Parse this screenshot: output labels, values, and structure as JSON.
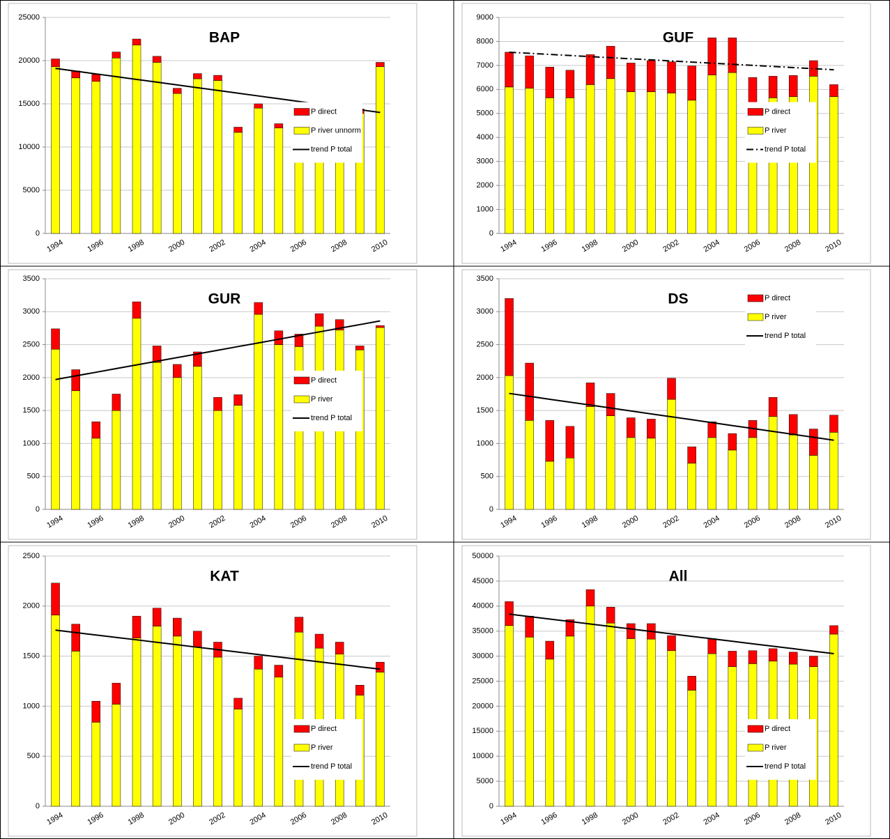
{
  "chart_data": [
    {
      "type": "bar",
      "stacked": true,
      "title": "BAP",
      "categories": [
        "1994",
        null,
        "1996",
        null,
        "1998",
        null,
        "2000",
        null,
        "2002",
        null,
        "2004",
        null,
        "2006",
        null,
        "2008",
        null,
        "2010"
      ],
      "series": [
        {
          "name": "P river unnorm",
          "color": "#ffff00",
          "values": [
            19300,
            18000,
            17600,
            20300,
            21800,
            19800,
            16200,
            17900,
            17700,
            11700,
            14500,
            12200,
            13500,
            13900,
            11800,
            13900,
            19300
          ]
        },
        {
          "name": "P direct",
          "color": "#ff0000",
          "values": [
            900,
            800,
            800,
            700,
            700,
            700,
            600,
            600,
            600,
            600,
            500,
            500,
            500,
            600,
            500,
            500,
            500
          ]
        },
        {
          "name": "trend P total",
          "type": "line",
          "color": "#000000",
          "line_style": "solid",
          "values": [
            19100,
            18781,
            18463,
            18144,
            17825,
            17506,
            17188,
            16869,
            16550,
            16231,
            15913,
            15594,
            15275,
            14956,
            14638,
            14319,
            14000
          ]
        }
      ],
      "ylim": [
        0,
        25000
      ],
      "yticks": [
        0,
        5000,
        10000,
        15000,
        20000,
        25000
      ],
      "grid": true,
      "legend": "center-right"
    },
    {
      "type": "bar",
      "stacked": true,
      "title": "GUF",
      "categories": [
        "1994",
        null,
        "1996",
        null,
        "1998",
        null,
        "2000",
        null,
        "2002",
        null,
        "2004",
        null,
        "2006",
        null,
        "2008",
        null,
        "2010"
      ],
      "series": [
        {
          "name": "P river",
          "color": "#ffff00",
          "values": [
            6100,
            6050,
            5650,
            5650,
            6200,
            6450,
            5900,
            5900,
            5850,
            5550,
            6600,
            6700,
            5400,
            5650,
            5700,
            6550,
            5700
          ]
        },
        {
          "name": "P direct",
          "color": "#ff0000",
          "values": [
            1450,
            1350,
            1280,
            1150,
            1250,
            1350,
            1200,
            1300,
            1300,
            1430,
            1550,
            1450,
            1100,
            900,
            880,
            650,
            500
          ]
        },
        {
          "name": "trend P total",
          "type": "line",
          "color": "#000000",
          "line_style": "dash-dot",
          "values": [
            7550,
            7504,
            7459,
            7413,
            7368,
            7322,
            7276,
            7231,
            7185,
            7139,
            7094,
            7048,
            7003,
            6957,
            6911,
            6866,
            6820
          ]
        }
      ],
      "ylim": [
        0,
        9000
      ],
      "yticks": [
        0,
        1000,
        2000,
        3000,
        4000,
        5000,
        6000,
        7000,
        8000,
        9000
      ],
      "grid": true,
      "legend": "center-right"
    },
    {
      "type": "bar",
      "stacked": true,
      "title": "GUR",
      "categories": [
        "1994",
        null,
        "1996",
        null,
        "1998",
        null,
        "2000",
        null,
        "2002",
        null,
        "2004",
        null,
        "2006",
        null,
        "2008",
        null,
        "2010"
      ],
      "series": [
        {
          "name": "P river",
          "color": "#ffff00",
          "values": [
            2430,
            1800,
            1080,
            1500,
            2900,
            2230,
            2000,
            2170,
            1500,
            1580,
            2960,
            2500,
            2470,
            2780,
            2720,
            2420,
            2760
          ]
        },
        {
          "name": "P direct",
          "color": "#ff0000",
          "values": [
            310,
            320,
            250,
            250,
            250,
            250,
            200,
            220,
            200,
            160,
            180,
            210,
            190,
            190,
            160,
            60,
            30
          ]
        },
        {
          "name": "trend P total",
          "type": "line",
          "color": "#000000",
          "line_style": "solid",
          "values": [
            1970,
            2026,
            2081,
            2137,
            2193,
            2248,
            2304,
            2359,
            2415,
            2471,
            2526,
            2582,
            2638,
            2693,
            2749,
            2804,
            2860
          ]
        }
      ],
      "ylim": [
        0,
        3500
      ],
      "yticks": [
        0,
        500,
        1000,
        1500,
        2000,
        2500,
        3000,
        3500
      ],
      "grid": true,
      "legend": "center-right"
    },
    {
      "type": "bar",
      "stacked": true,
      "title": "DS",
      "categories": [
        "1994",
        null,
        "1996",
        null,
        "1998",
        null,
        "2000",
        null,
        "2002",
        null,
        "2004",
        null,
        "2006",
        null,
        "2008",
        null,
        "2010"
      ],
      "series": [
        {
          "name": "P river",
          "color": "#ffff00",
          "values": [
            2030,
            1350,
            730,
            780,
            1560,
            1420,
            1090,
            1080,
            1670,
            700,
            1090,
            900,
            1090,
            1410,
            1130,
            820,
            1170
          ]
        },
        {
          "name": "P direct",
          "color": "#ff0000",
          "values": [
            1170,
            870,
            620,
            480,
            360,
            340,
            300,
            290,
            320,
            250,
            240,
            250,
            260,
            290,
            310,
            400,
            260
          ]
        },
        {
          "name": "trend P total",
          "type": "line",
          "color": "#000000",
          "line_style": "solid",
          "values": [
            1760,
            1716,
            1671,
            1627,
            1583,
            1538,
            1494,
            1449,
            1405,
            1361,
            1316,
            1272,
            1228,
            1183,
            1139,
            1094,
            1050
          ]
        }
      ],
      "ylim": [
        0,
        3500
      ],
      "yticks": [
        0,
        500,
        1000,
        1500,
        2000,
        2500,
        3000,
        3500
      ],
      "grid": true,
      "legend": "top-right"
    },
    {
      "type": "bar",
      "stacked": true,
      "title": "KAT",
      "categories": [
        "1994",
        null,
        "1996",
        null,
        "1998",
        null,
        "2000",
        null,
        "2002",
        null,
        "2004",
        null,
        "2006",
        null,
        "2008",
        null,
        "2010"
      ],
      "series": [
        {
          "name": "P river",
          "color": "#ffff00",
          "values": [
            1910,
            1550,
            840,
            1020,
            1680,
            1800,
            1700,
            1590,
            1490,
            970,
            1370,
            1290,
            1740,
            1580,
            1520,
            1110,
            1340
          ]
        },
        {
          "name": "P direct",
          "color": "#ff0000",
          "values": [
            320,
            270,
            210,
            210,
            220,
            180,
            180,
            160,
            150,
            110,
            130,
            120,
            150,
            140,
            120,
            100,
            100
          ]
        },
        {
          "name": "trend P total",
          "type": "line",
          "color": "#000000",
          "line_style": "solid",
          "values": [
            1760,
            1736,
            1711,
            1687,
            1663,
            1638,
            1614,
            1589,
            1565,
            1541,
            1516,
            1492,
            1468,
            1443,
            1419,
            1394,
            1370
          ]
        }
      ],
      "ylim": [
        0,
        2500
      ],
      "yticks": [
        0,
        500,
        1000,
        1500,
        2000,
        2500
      ],
      "grid": true,
      "legend": "bottom-right"
    },
    {
      "type": "bar",
      "stacked": true,
      "title": "All",
      "categories": [
        "1994",
        null,
        "1996",
        null,
        "1998",
        null,
        "2000",
        null,
        "2002",
        null,
        "2004",
        null,
        "2006",
        null,
        "2008",
        null,
        "2010"
      ],
      "series": [
        {
          "name": "P river",
          "color": "#ffff00",
          "values": [
            36100,
            33800,
            29400,
            34000,
            40000,
            36600,
            33500,
            33400,
            31100,
            23200,
            30500,
            27900,
            28500,
            29000,
            28400,
            27900,
            34400
          ]
        },
        {
          "name": "P direct",
          "color": "#ff0000",
          "values": [
            4800,
            4200,
            3600,
            3300,
            3300,
            3200,
            3000,
            3100,
            3000,
            2800,
            3000,
            3100,
            2600,
            2500,
            2400,
            2100,
            1700
          ]
        },
        {
          "name": "trend P total",
          "type": "line",
          "color": "#000000",
          "line_style": "solid",
          "values": [
            38400,
            37906,
            37413,
            36919,
            36425,
            35931,
            35438,
            34944,
            34450,
            33956,
            33463,
            32969,
            32475,
            31981,
            31488,
            30994,
            30500
          ]
        }
      ],
      "ylim": [
        0,
        50000
      ],
      "yticks": [
        0,
        5000,
        10000,
        15000,
        20000,
        25000,
        30000,
        35000,
        40000,
        45000,
        50000
      ],
      "grid": true,
      "legend": "bottom-right"
    }
  ]
}
